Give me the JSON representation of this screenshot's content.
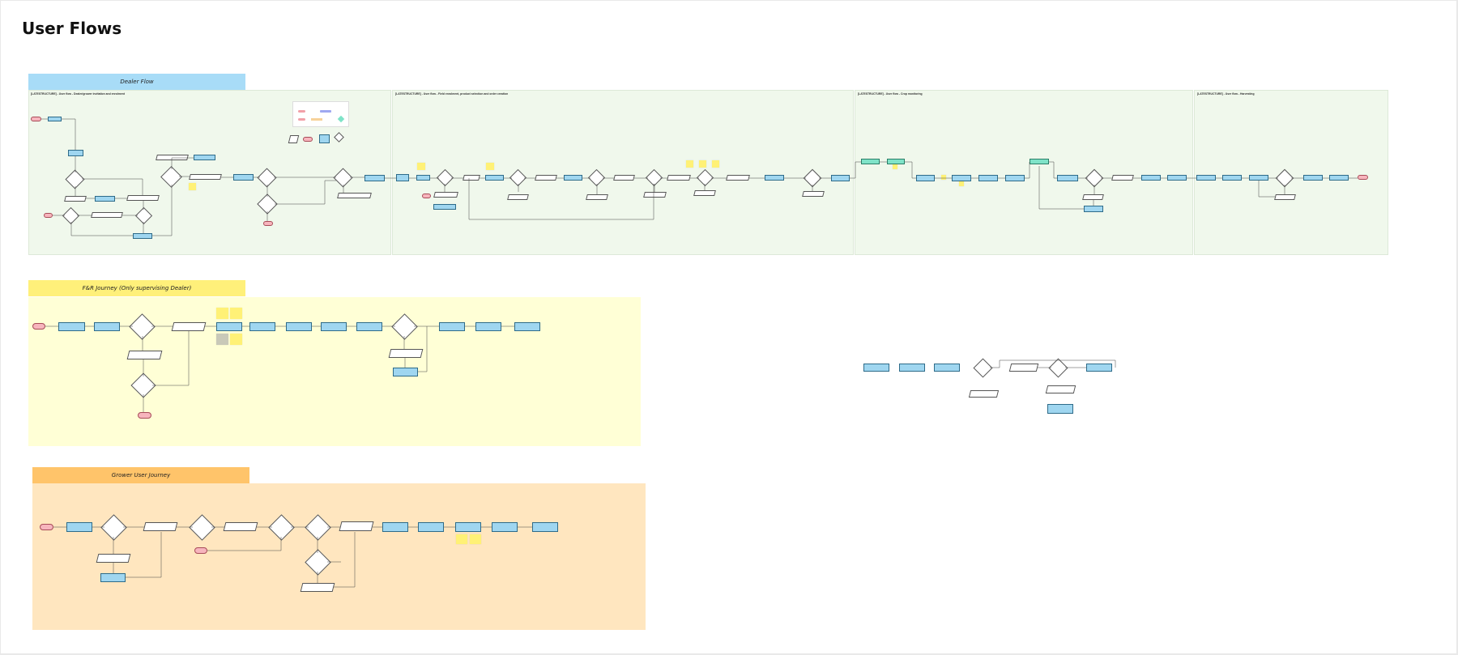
{
  "page": {
    "title": "User Flows"
  },
  "sections": {
    "dealer": {
      "label": "Dealer Flow",
      "color": "#a8dcf7"
    },
    "fnr": {
      "label": "F&R Journey (Only supervising Dealer)",
      "color": "#fff07a"
    },
    "grower": {
      "label": "Grower User Journey",
      "color": "#ffc46a"
    }
  },
  "colors": {
    "dealer_board": "#f0f8ec",
    "fnr_board": "#ffffd6",
    "grower_board": "#ffe6bf",
    "process": "#9fd6f0",
    "terminal": "#f7b5bd",
    "sticky": "#fff176"
  },
  "dealer_boards": [
    {
      "title": "[LATESTRUCTURE] - User flow - Dealer/grower invitation and enrolment",
      "subtitle": ""
    },
    {
      "title": "[LATESTRUCTURE] - User flow - Field enrolment, product selection and order creation",
      "subtitle": ""
    },
    {
      "title": "[LATESTRUCTURE] - User flow - Crop monitoring",
      "subtitle": ""
    },
    {
      "title": "[LATESTRUCTURE] - User flow - Harvesting",
      "subtitle": ""
    }
  ]
}
